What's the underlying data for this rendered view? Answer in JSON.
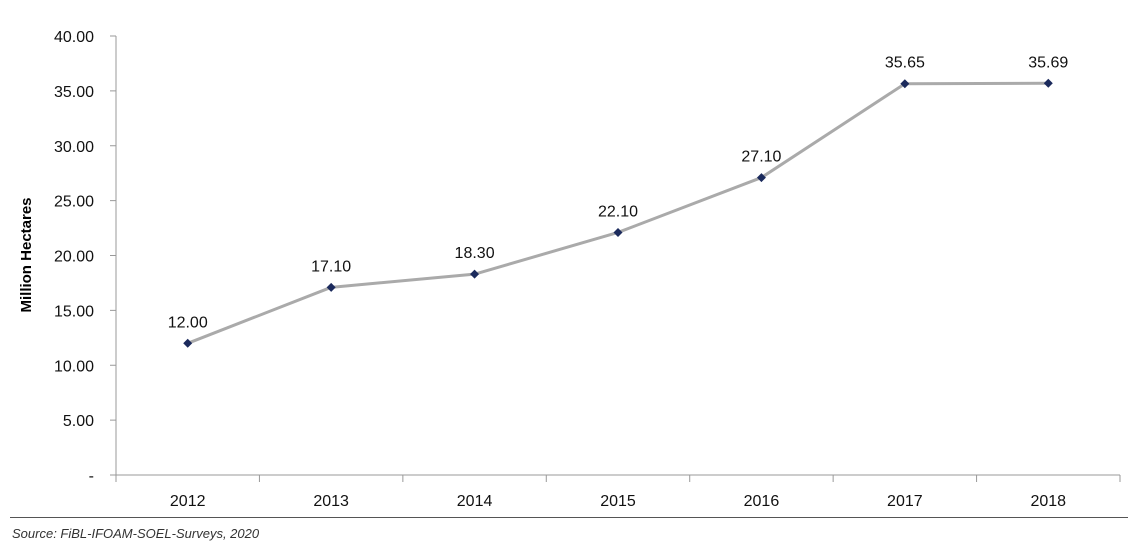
{
  "chart_data": {
    "type": "line",
    "title": "",
    "xlabel": "",
    "ylabel": "Million Hectares",
    "categories": [
      "2012",
      "2013",
      "2014",
      "2015",
      "2016",
      "2017",
      "2018"
    ],
    "series": [
      {
        "values": [
          12.0,
          17.1,
          18.3,
          22.1,
          27.1,
          35.65,
          35.69
        ],
        "labels": [
          "12.00",
          "17.10",
          "18.30",
          "22.10",
          "27.10",
          "35.65",
          "35.69"
        ],
        "line_color": "#aaaaaa",
        "marker_color": "#1b2a5c",
        "marker": "diamond"
      }
    ],
    "ylim": [
      0,
      40
    ],
    "yticks": [
      0,
      5,
      10,
      15,
      20,
      25,
      30,
      35,
      40
    ],
    "ytick_labels": [
      "-",
      "5.00",
      "10.00",
      "15.00",
      "20.00",
      "25.00",
      "30.00",
      "35.00",
      "40.00"
    ],
    "grid": false,
    "legend": "none"
  },
  "source": "Source: FiBL-IFOAM-SOEL-Surveys, 2020"
}
